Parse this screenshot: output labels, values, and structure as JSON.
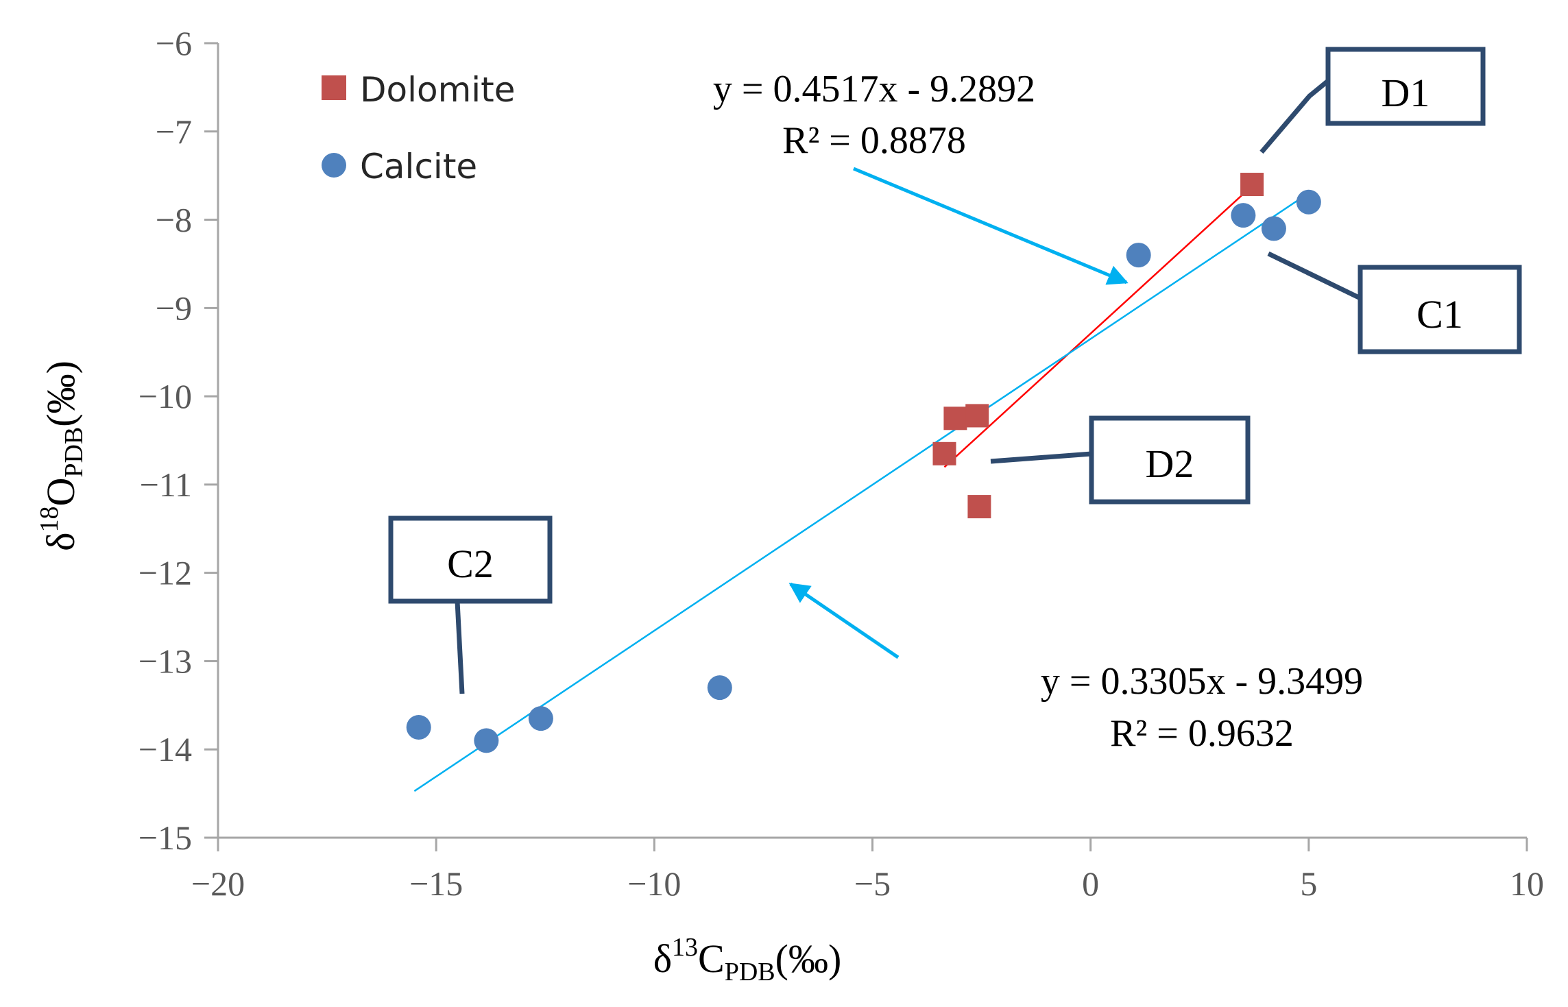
{
  "chart_data": {
    "type": "scatter",
    "title": "",
    "xlabel": {
      "base": "δ",
      "sup": "13",
      "main": "C",
      "sub": "PDB",
      "unit": "(‰)"
    },
    "ylabel": {
      "base": "δ",
      "sup": "18",
      "main": "O",
      "sub": "PDB",
      "unit": "(‰)"
    },
    "xlim": [
      -20,
      10
    ],
    "ylim": [
      -15,
      -6
    ],
    "xticks": [
      -20,
      -15,
      -10,
      -5,
      0,
      5,
      10
    ],
    "yticks": [
      -15,
      -14,
      -13,
      -12,
      -11,
      -10,
      -9,
      -8,
      -7,
      -6
    ],
    "xtick_labels": [
      "−20",
      "−15",
      "−10",
      "−5",
      "0",
      "5",
      "10"
    ],
    "ytick_labels": [
      "−15",
      "−14",
      "−13",
      "−12",
      "−11",
      "−10",
      "−9",
      "−8",
      "−7",
      "−6"
    ],
    "legend_position": "top-left",
    "series": [
      {
        "name": "Dolomite",
        "marker": "square",
        "color": "#C0504D",
        "points": [
          [
            3.7,
            -7.6
          ],
          [
            -3.1,
            -10.25
          ],
          [
            -2.6,
            -10.22
          ],
          [
            -3.35,
            -10.65
          ],
          [
            -2.55,
            -11.25
          ]
        ],
        "trendline": {
          "from": -3.35,
          "to": 3.7,
          "color": "#FF0000",
          "equation": "y = 0.4517x - 9.2892",
          "r2": "R² = 0.8878"
        }
      },
      {
        "name": "Calcite",
        "marker": "circle",
        "color": "#4F81BD",
        "points": [
          [
            5.0,
            -7.8
          ],
          [
            3.5,
            -7.95
          ],
          [
            4.2,
            -8.1
          ],
          [
            1.1,
            -8.4
          ],
          [
            -8.5,
            -13.3
          ],
          [
            -12.6,
            -13.65
          ],
          [
            -13.85,
            -13.9
          ],
          [
            -15.4,
            -13.75
          ]
        ],
        "trendline": {
          "from": -15.5,
          "to": 5.0,
          "color": "#00B0F0",
          "equation": "y = 0.3305x - 9.3499",
          "r2": "R² = 0.9632"
        }
      }
    ],
    "callouts": [
      {
        "label": "D1",
        "data_anchor": [
          3.8,
          -7.3
        ]
      },
      {
        "label": "C1",
        "data_anchor": [
          4.0,
          -8.35
        ]
      },
      {
        "label": "D2",
        "data_anchor": [
          -2.4,
          -10.85
        ]
      },
      {
        "label": "C2",
        "data_anchor": [
          -14.45,
          -13.35
        ]
      }
    ]
  },
  "colors": {
    "axis": "#A6A6A6",
    "callout_border": "#2E4A6E",
    "arrow": "#00B0F0"
  }
}
